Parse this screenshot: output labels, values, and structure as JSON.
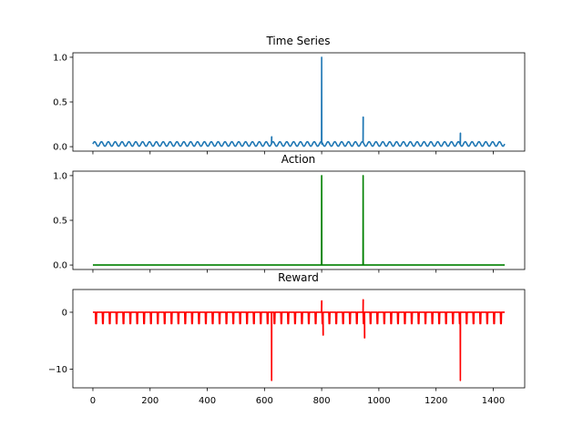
{
  "chart_data": [
    {
      "type": "line",
      "title": "Time Series",
      "xlim": [
        -70,
        1510
      ],
      "ylim": [
        -0.05,
        1.05
      ],
      "yticks": [
        0.0,
        0.5,
        1.0
      ],
      "ytick_labels": [
        "0.0",
        "0.5",
        "1.0"
      ],
      "xticks": [
        0,
        200,
        400,
        600,
        800,
        1000,
        1200,
        1400
      ],
      "color": "#1f77b4",
      "series": [
        {
          "baseline": 0.03,
          "wave_amplitude": 0.025,
          "wave_period": 24,
          "x_range": [
            0,
            1440
          ],
          "spikes": [
            {
              "x": 625,
              "y": 0.11
            },
            {
              "x": 800,
              "y": 1.0
            },
            {
              "x": 945,
              "y": 0.33
            },
            {
              "x": 1285,
              "y": 0.15
            }
          ]
        }
      ]
    },
    {
      "type": "line",
      "title": "Action",
      "xlim": [
        -70,
        1510
      ],
      "ylim": [
        -0.05,
        1.05
      ],
      "yticks": [
        0.0,
        0.5,
        1.0
      ],
      "ytick_labels": [
        "0.0",
        "0.5",
        "1.0"
      ],
      "xticks": [
        0,
        200,
        400,
        600,
        800,
        1000,
        1200,
        1400
      ],
      "color": "#008000",
      "series": [
        {
          "baseline": 0,
          "x_range": [
            0,
            1440
          ],
          "spikes": [
            {
              "x": 800,
              "y": 1.0
            },
            {
              "x": 945,
              "y": 1.0
            }
          ]
        }
      ]
    },
    {
      "type": "line",
      "title": "Reward",
      "xlim": [
        -70,
        1510
      ],
      "ylim": [
        -13.3,
        4.0
      ],
      "yticks": [
        0,
        -10
      ],
      "ytick_labels": [
        "0",
        "−10"
      ],
      "xticks": [
        0,
        200,
        400,
        600,
        800,
        1000,
        1200,
        1400
      ],
      "xtick_labels": [
        "0",
        "200",
        "400",
        "600",
        "800",
        "1000",
        "1200",
        "1400"
      ],
      "color": "#ff0000",
      "series": [
        {
          "baseline": 0,
          "dip_value": -2.0,
          "dip_period": 24,
          "x_range": [
            0,
            1440
          ],
          "spikes": [
            {
              "x": 625,
              "y": -12.0
            },
            {
              "x": 800,
              "y": 2.0
            },
            {
              "x": 805,
              "y": -4.0
            },
            {
              "x": 945,
              "y": 2.2
            },
            {
              "x": 950,
              "y": -4.5
            },
            {
              "x": 1285,
              "y": -12.0
            }
          ]
        }
      ]
    }
  ]
}
